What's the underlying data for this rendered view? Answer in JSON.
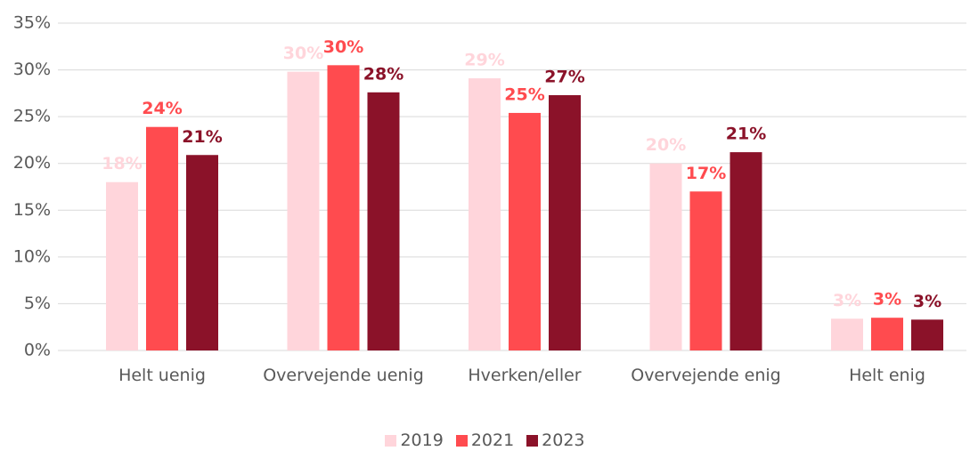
{
  "chart_data": {
    "type": "bar",
    "categories": [
      "Helt uenig",
      "Overvejende uenig",
      "Hverken/eller",
      "Overvejende enig",
      "Helt enig"
    ],
    "series": [
      {
        "name": "2019",
        "color": "#ffd5db",
        "values": [
          18,
          29.8,
          29.1,
          20,
          3.4
        ],
        "value_labels": [
          "18%",
          "30%",
          "29%",
          "20%",
          "3%"
        ]
      },
      {
        "name": "2021",
        "color": "#ff4b4f",
        "values": [
          23.9,
          30.5,
          25.4,
          17,
          3.5
        ],
        "value_labels": [
          "24%",
          "30%",
          "25%",
          "17%",
          "3%"
        ]
      },
      {
        "name": "2023",
        "color": "#8b1229",
        "values": [
          20.9,
          27.6,
          27.3,
          21.2,
          3.3
        ],
        "value_labels": [
          "21%",
          "28%",
          "27%",
          "21%",
          "3%"
        ]
      }
    ],
    "ylim": [
      0,
      35
    ],
    "yticks": [
      {
        "value": 0,
        "label": "0%"
      },
      {
        "value": 5,
        "label": "5%"
      },
      {
        "value": 10,
        "label": "10%"
      },
      {
        "value": 15,
        "label": "15%"
      },
      {
        "value": 20,
        "label": "20%"
      },
      {
        "value": 25,
        "label": "25%"
      },
      {
        "value": 30,
        "label": "30%"
      },
      {
        "value": 35,
        "label": "35%"
      }
    ],
    "grid": true,
    "legend": "bottom"
  }
}
